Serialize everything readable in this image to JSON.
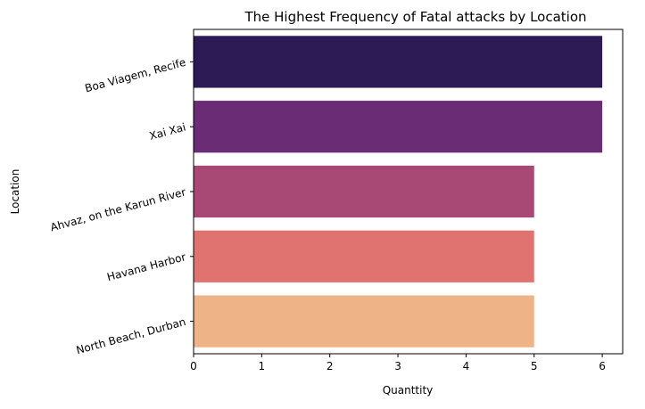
{
  "chart_data": {
    "type": "bar",
    "orientation": "horizontal",
    "title": "The Highest Frequency of Fatal attacks by Location",
    "xlabel": "Quanttity",
    "ylabel": "Location",
    "categories": [
      "Boa Viagem, Recife",
      "Xai Xai",
      "Ahvaz, on the Karun River",
      "Havana Harbor",
      "North Beach, Durban"
    ],
    "values": [
      6,
      6,
      5,
      5,
      5
    ],
    "colors": [
      "#2d1b55",
      "#6a2c75",
      "#a84875",
      "#e07370",
      "#eeb488"
    ],
    "xlim": [
      0,
      6.3
    ],
    "xticks": [
      0,
      1,
      2,
      3,
      4,
      5,
      6
    ],
    "grid": false,
    "legend": "none"
  }
}
